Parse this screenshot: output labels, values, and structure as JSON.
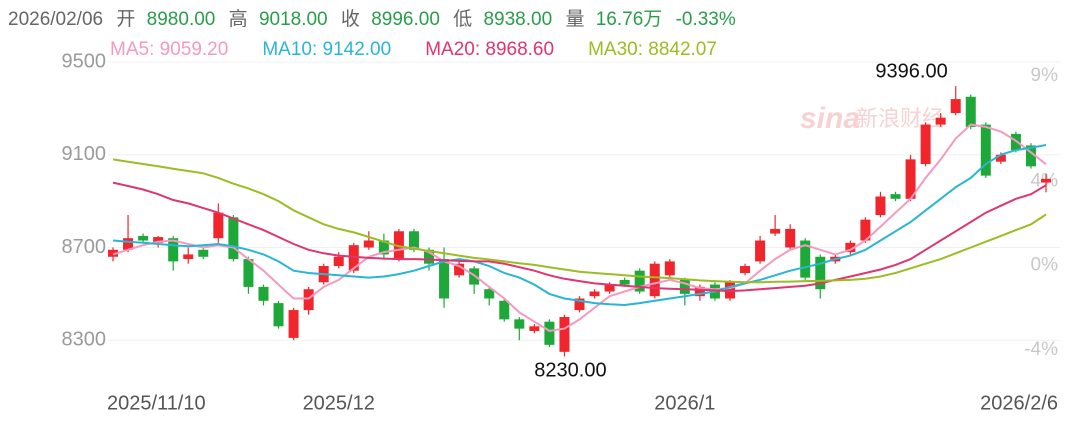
{
  "header": {
    "date": "2026/02/06",
    "open_label": "开",
    "open": "8980.00",
    "high_label": "高",
    "high": "9018.00",
    "close_label": "收",
    "close": "8996.00",
    "low_label": "低",
    "low": "8938.00",
    "volume_label": "量",
    "volume": "16.76万",
    "change": "-0.33%"
  },
  "watermark": {
    "logo": "sina",
    "text": "新浪财经"
  },
  "chart_data": {
    "type": "candlestick",
    "categories": [
      "2025/11/10",
      null,
      null,
      null,
      null,
      null,
      null,
      null,
      null,
      null,
      null,
      null,
      null,
      null,
      null,
      "2025/12",
      null,
      null,
      null,
      null,
      null,
      null,
      null,
      null,
      null,
      null,
      null,
      null,
      null,
      null,
      null,
      null,
      null,
      null,
      null,
      null,
      null,
      null,
      "2026/1",
      null,
      null,
      null,
      null,
      null,
      null,
      null,
      null,
      null,
      null,
      null,
      null,
      null,
      null,
      null,
      null,
      null,
      null,
      null,
      null,
      null,
      null,
      null,
      "2026/2/6"
    ],
    "open": [
      8660,
      8690,
      8750,
      8720,
      8740,
      8650,
      8690,
      8740,
      8830,
      8650,
      8530,
      8460,
      8310,
      8430,
      8550,
      8620,
      8600,
      8700,
      8730,
      8650,
      8770,
      8690,
      8650,
      8580,
      8610,
      8520,
      8470,
      8390,
      8340,
      8380,
      8250,
      8430,
      8490,
      8510,
      8560,
      8600,
      8490,
      8580,
      8560,
      8490,
      8540,
      8480,
      8590,
      8640,
      8760,
      8700,
      8730,
      8660,
      8640,
      8680,
      8730,
      8840,
      8930,
      8910,
      9060,
      9230,
      9280,
      9350,
      9230,
      9070,
      9190,
      9140,
      8980
    ],
    "high": [
      8700,
      8840,
      8760,
      8750,
      8750,
      8700,
      8700,
      8890,
      8840,
      8660,
      8540,
      8470,
      8440,
      8530,
      8630,
      8680,
      8720,
      8770,
      8760,
      8780,
      8780,
      8700,
      8700,
      8640,
      8620,
      8530,
      8480,
      8400,
      8370,
      8390,
      8410,
      8490,
      8520,
      8550,
      8570,
      8610,
      8640,
      8650,
      8570,
      8540,
      8550,
      8560,
      8630,
      8750,
      8840,
      8800,
      8740,
      8670,
      8670,
      8730,
      8830,
      8940,
      8940,
      9100,
      9240,
      9280,
      9396,
      9360,
      9240,
      9110,
      9200,
      9150,
      9018
    ],
    "low": [
      8640,
      8680,
      8720,
      8700,
      8600,
      8630,
      8650,
      8720,
      8640,
      8500,
      8450,
      8350,
      8300,
      8410,
      8540,
      8610,
      8590,
      8690,
      8650,
      8640,
      8680,
      8600,
      8440,
      8570,
      8500,
      8450,
      8380,
      8300,
      8330,
      8270,
      8230,
      8420,
      8480,
      8500,
      8530,
      8500,
      8480,
      8570,
      8450,
      8470,
      8470,
      8470,
      8580,
      8630,
      8750,
      8690,
      8560,
      8480,
      8630,
      8670,
      8720,
      8830,
      8900,
      8900,
      9050,
      9220,
      9270,
      9210,
      9000,
      9060,
      9110,
      9040,
      8938
    ],
    "close": [
      8690,
      8740,
      8730,
      8745,
      8640,
      8670,
      8660,
      8850,
      8650,
      8530,
      8470,
      8360,
      8430,
      8520,
      8620,
      8660,
      8710,
      8730,
      8670,
      8770,
      8690,
      8630,
      8480,
      8630,
      8540,
      8480,
      8390,
      8350,
      8360,
      8280,
      8400,
      8480,
      8510,
      8540,
      8540,
      8510,
      8630,
      8640,
      8500,
      8530,
      8480,
      8550,
      8620,
      8730,
      8780,
      8780,
      8570,
      8520,
      8660,
      8720,
      8820,
      8920,
      8910,
      9080,
      9230,
      9260,
      9340,
      9220,
      9010,
      9100,
      9120,
      9050,
      8996
    ],
    "up_color": "#f0262c",
    "down_color": "#1ea83a",
    "series": [
      {
        "name": "MA5: 9059.20",
        "color": "#f49ac1",
        "values": [
          8670,
          8690,
          8710,
          8725,
          8730,
          8715,
          8700,
          8710,
          8700,
          8650,
          8600,
          8540,
          8480,
          8480,
          8530,
          8560,
          8610,
          8660,
          8680,
          8690,
          8700,
          8680,
          8640,
          8620,
          8580,
          8530,
          8480,
          8420,
          8380,
          8340,
          8350,
          8390,
          8440,
          8490,
          8510,
          8530,
          8545,
          8560,
          8545,
          8525,
          8520,
          8525,
          8545,
          8600,
          8650,
          8690,
          8710,
          8690,
          8670,
          8690,
          8730,
          8790,
          8850,
          8910,
          9000,
          9080,
          9170,
          9230,
          9220,
          9200,
          9160,
          9110,
          9059.2
        ]
      },
      {
        "name": "MA10: 9142.00",
        "color": "#29b6d4",
        "values": [
          8730,
          8725,
          8720,
          8715,
          8710,
          8705,
          8710,
          8715,
          8705,
          8690,
          8670,
          8640,
          8600,
          8590,
          8585,
          8580,
          8575,
          8570,
          8575,
          8585,
          8600,
          8620,
          8640,
          8650,
          8640,
          8620,
          8590,
          8570,
          8540,
          8500,
          8480,
          8470,
          8460,
          8455,
          8452,
          8460,
          8470,
          8480,
          8490,
          8500,
          8510,
          8530,
          8545,
          8560,
          8580,
          8600,
          8615,
          8630,
          8650,
          8665,
          8690,
          8730,
          8770,
          8810,
          8860,
          8910,
          8960,
          9000,
          9060,
          9100,
          9120,
          9130,
          9142
        ]
      },
      {
        "name": "MA20: 8968.60",
        "color": "#e0356e",
        "values": [
          8980,
          8965,
          8950,
          8930,
          8905,
          8890,
          8870,
          8850,
          8825,
          8800,
          8775,
          8745,
          8715,
          8690,
          8675,
          8665,
          8660,
          8655,
          8652,
          8650,
          8650,
          8648,
          8645,
          8642,
          8640,
          8640,
          8630,
          8615,
          8600,
          8580,
          8565,
          8555,
          8545,
          8540,
          8535,
          8530,
          8525,
          8522,
          8520,
          8518,
          8515,
          8512,
          8515,
          8520,
          8525,
          8530,
          8535,
          8545,
          8560,
          8575,
          8590,
          8605,
          8625,
          8650,
          8690,
          8730,
          8770,
          8810,
          8850,
          8880,
          8910,
          8930,
          8968.6
        ]
      },
      {
        "name": "MA30: 8842.07",
        "color": "#9cbc22",
        "values": [
          9080,
          9070,
          9060,
          9050,
          9040,
          9030,
          9020,
          9000,
          8975,
          8955,
          8930,
          8900,
          8860,
          8830,
          8800,
          8780,
          8765,
          8745,
          8725,
          8705,
          8695,
          8685,
          8675,
          8665,
          8655,
          8648,
          8640,
          8632,
          8625,
          8615,
          8605,
          8595,
          8590,
          8585,
          8580,
          8575,
          8572,
          8568,
          8563,
          8558,
          8555,
          8552,
          8550,
          8550,
          8552,
          8553,
          8555,
          8556,
          8558,
          8560,
          8565,
          8575,
          8590,
          8610,
          8630,
          8650,
          8675,
          8700,
          8725,
          8750,
          8775,
          8800,
          8842.07
        ]
      }
    ],
    "ylim": [
      8150,
      9500
    ],
    "yticks": [
      8300,
      8700,
      9100,
      9500
    ],
    "y2lim": [
      -5.19,
      9.66
    ],
    "y2ticks": [
      {
        "value": 9,
        "label": "9%"
      },
      {
        "value": 4,
        "label": "4%"
      },
      {
        "value": 0,
        "label": "0%"
      },
      {
        "value": -4,
        "label": "-4%"
      }
    ],
    "max_label": {
      "value": 9396,
      "label": "9396.00"
    },
    "min_label": {
      "value": 8230,
      "label": "8230.00"
    },
    "grid": true
  }
}
